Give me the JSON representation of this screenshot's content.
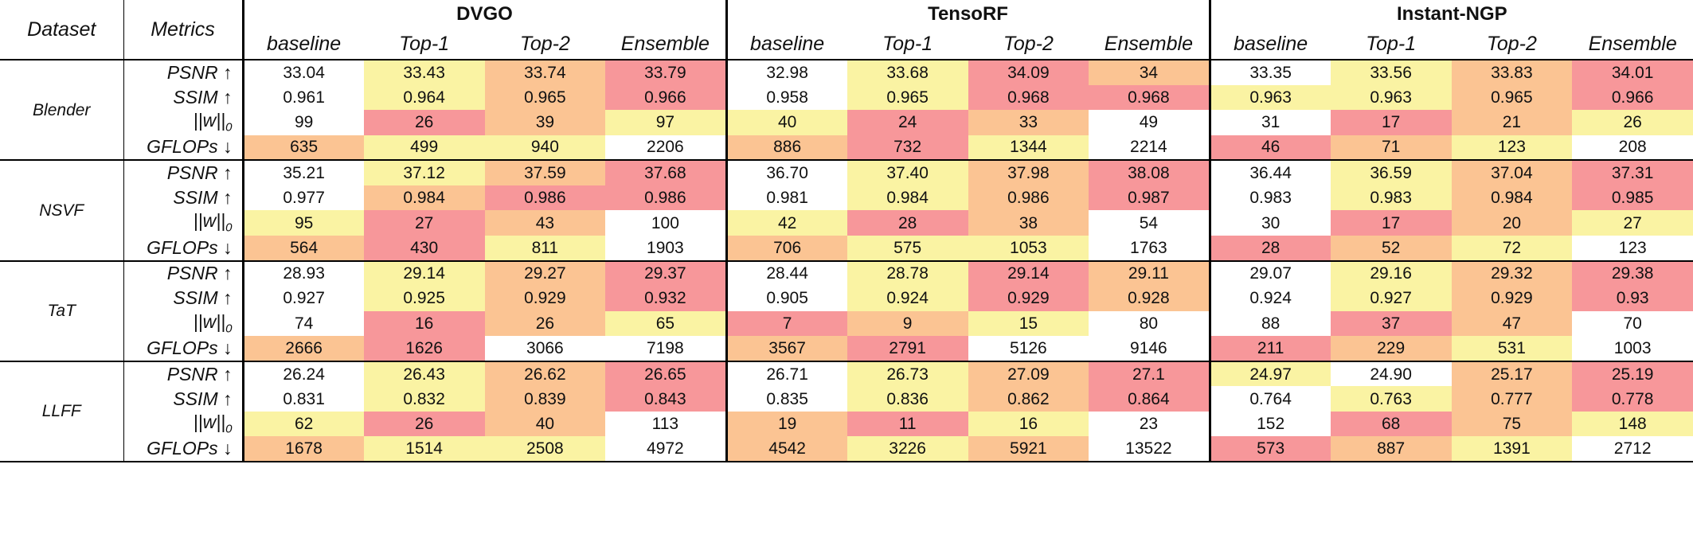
{
  "colors": {
    "white": "#ffffff",
    "yellow": "#faf3a3",
    "orange": "#fbc493",
    "red": "#f7979a"
  },
  "header": {
    "dataset_label": "Dataset",
    "metrics_label": "Metrics",
    "methods": [
      "DVGO",
      "TensoRF",
      "Instant-NGP"
    ],
    "subcolumns": [
      "baseline",
      "Top-1",
      "Top-2",
      "Ensemble"
    ]
  },
  "datasets": [
    {
      "name": "Blender",
      "rows": [
        {
          "metric": "PSNR ↑",
          "values": [
            "33.04",
            "33.43",
            "33.74",
            "33.79",
            "32.98",
            "33.68",
            "34.09",
            "34",
            "33.35",
            "33.56",
            "33.83",
            "34.01"
          ],
          "colors": [
            "W",
            "Y",
            "O",
            "R",
            "W",
            "Y",
            "R",
            "O",
            "W",
            "Y",
            "O",
            "R"
          ]
        },
        {
          "metric": "SSIM ↑",
          "values": [
            "0.961",
            "0.964",
            "0.965",
            "0.966",
            "0.958",
            "0.965",
            "0.968",
            "0.968",
            "0.963",
            "0.963",
            "0.965",
            "0.966"
          ],
          "colors": [
            "W",
            "Y",
            "O",
            "R",
            "W",
            "Y",
            "R",
            "R",
            "Y",
            "Y",
            "O",
            "R"
          ]
        },
        {
          "metric": "||w||0",
          "values": [
            "99",
            "26",
            "39",
            "97",
            "40",
            "24",
            "33",
            "49",
            "31",
            "17",
            "21",
            "26"
          ],
          "colors": [
            "W",
            "R",
            "O",
            "Y",
            "Y",
            "R",
            "O",
            "W",
            "W",
            "R",
            "O",
            "Y"
          ]
        },
        {
          "metric": "GFLOPs ↓",
          "values": [
            "635",
            "499",
            "940",
            "2206",
            "886",
            "732",
            "1344",
            "2214",
            "46",
            "71",
            "123",
            "208"
          ],
          "colors": [
            "O",
            "Y",
            "Y",
            "W",
            "O",
            "R",
            "Y",
            "W",
            "R",
            "O",
            "Y",
            "W"
          ]
        }
      ]
    },
    {
      "name": "NSVF",
      "rows": [
        {
          "metric": "PSNR ↑",
          "values": [
            "35.21",
            "37.12",
            "37.59",
            "37.68",
            "36.70",
            "37.40",
            "37.98",
            "38.08",
            "36.44",
            "36.59",
            "37.04",
            "37.31"
          ],
          "colors": [
            "W",
            "Y",
            "O",
            "R",
            "W",
            "Y",
            "O",
            "R",
            "W",
            "Y",
            "O",
            "R"
          ]
        },
        {
          "metric": "SSIM ↑",
          "values": [
            "0.977",
            "0.984",
            "0.986",
            "0.986",
            "0.981",
            "0.984",
            "0.986",
            "0.987",
            "0.983",
            "0.983",
            "0.984",
            "0.985"
          ],
          "colors": [
            "W",
            "O",
            "R",
            "R",
            "W",
            "Y",
            "O",
            "R",
            "W",
            "Y",
            "O",
            "R"
          ]
        },
        {
          "metric": "||w||0",
          "values": [
            "95",
            "27",
            "43",
            "100",
            "42",
            "28",
            "38",
            "54",
            "30",
            "17",
            "20",
            "27"
          ],
          "colors": [
            "Y",
            "R",
            "O",
            "W",
            "Y",
            "R",
            "O",
            "W",
            "W",
            "R",
            "O",
            "Y"
          ]
        },
        {
          "metric": "GFLOPs ↓",
          "values": [
            "564",
            "430",
            "811",
            "1903",
            "706",
            "575",
            "1053",
            "1763",
            "28",
            "52",
            "72",
            "123"
          ],
          "colors": [
            "O",
            "R",
            "Y",
            "W",
            "O",
            "Y",
            "Y",
            "W",
            "R",
            "O",
            "Y",
            "W"
          ]
        }
      ]
    },
    {
      "name": "TaT",
      "rows": [
        {
          "metric": "PSNR ↑",
          "values": [
            "28.93",
            "29.14",
            "29.27",
            "29.37",
            "28.44",
            "28.78",
            "29.14",
            "29.11",
            "29.07",
            "29.16",
            "29.32",
            "29.38"
          ],
          "colors": [
            "W",
            "Y",
            "O",
            "R",
            "W",
            "Y",
            "R",
            "O",
            "W",
            "Y",
            "O",
            "R"
          ]
        },
        {
          "metric": "SSIM ↑",
          "values": [
            "0.927",
            "0.925",
            "0.929",
            "0.932",
            "0.905",
            "0.924",
            "0.929",
            "0.928",
            "0.924",
            "0.927",
            "0.929",
            "0.93"
          ],
          "colors": [
            "W",
            "Y",
            "O",
            "R",
            "W",
            "Y",
            "R",
            "O",
            "W",
            "Y",
            "O",
            "R"
          ]
        },
        {
          "metric": "||w||0",
          "values": [
            "74",
            "16",
            "26",
            "65",
            "7",
            "9",
            "15",
            "80",
            "88",
            "37",
            "47",
            "70"
          ],
          "colors": [
            "W",
            "R",
            "O",
            "Y",
            "R",
            "O",
            "Y",
            "W",
            "W",
            "R",
            "O",
            "W"
          ]
        },
        {
          "metric": "GFLOPs ↓",
          "values": [
            "2666",
            "1626",
            "3066",
            "7198",
            "3567",
            "2791",
            "5126",
            "9146",
            "211",
            "229",
            "531",
            "1003"
          ],
          "colors": [
            "O",
            "R",
            "W",
            "W",
            "O",
            "R",
            "W",
            "W",
            "R",
            "O",
            "Y",
            "W"
          ]
        }
      ]
    },
    {
      "name": "LLFF",
      "rows": [
        {
          "metric": "PSNR ↑",
          "values": [
            "26.24",
            "26.43",
            "26.62",
            "26.65",
            "26.71",
            "26.73",
            "27.09",
            "27.1",
            "24.97",
            "24.90",
            "25.17",
            "25.19"
          ],
          "colors": [
            "W",
            "Y",
            "O",
            "R",
            "W",
            "Y",
            "O",
            "R",
            "Y",
            "W",
            "O",
            "R"
          ]
        },
        {
          "metric": "SSIM ↑",
          "values": [
            "0.831",
            "0.832",
            "0.839",
            "0.843",
            "0.835",
            "0.836",
            "0.862",
            "0.864",
            "0.764",
            "0.763",
            "0.777",
            "0.778"
          ],
          "colors": [
            "W",
            "Y",
            "O",
            "R",
            "W",
            "Y",
            "O",
            "R",
            "W",
            "Y",
            "O",
            "R"
          ]
        },
        {
          "metric": "||w||0",
          "values": [
            "62",
            "26",
            "40",
            "113",
            "19",
            "11",
            "16",
            "23",
            "152",
            "68",
            "75",
            "148"
          ],
          "colors": [
            "Y",
            "R",
            "O",
            "W",
            "O",
            "R",
            "Y",
            "W",
            "W",
            "R",
            "O",
            "Y"
          ]
        },
        {
          "metric": "GFLOPs ↓",
          "values": [
            "1678",
            "1514",
            "2508",
            "4972",
            "4542",
            "3226",
            "5921",
            "13522",
            "573",
            "887",
            "1391",
            "2712"
          ],
          "colors": [
            "O",
            "Y",
            "Y",
            "W",
            "O",
            "Y",
            "O",
            "W",
            "R",
            "O",
            "Y",
            "W"
          ]
        }
      ]
    }
  ]
}
